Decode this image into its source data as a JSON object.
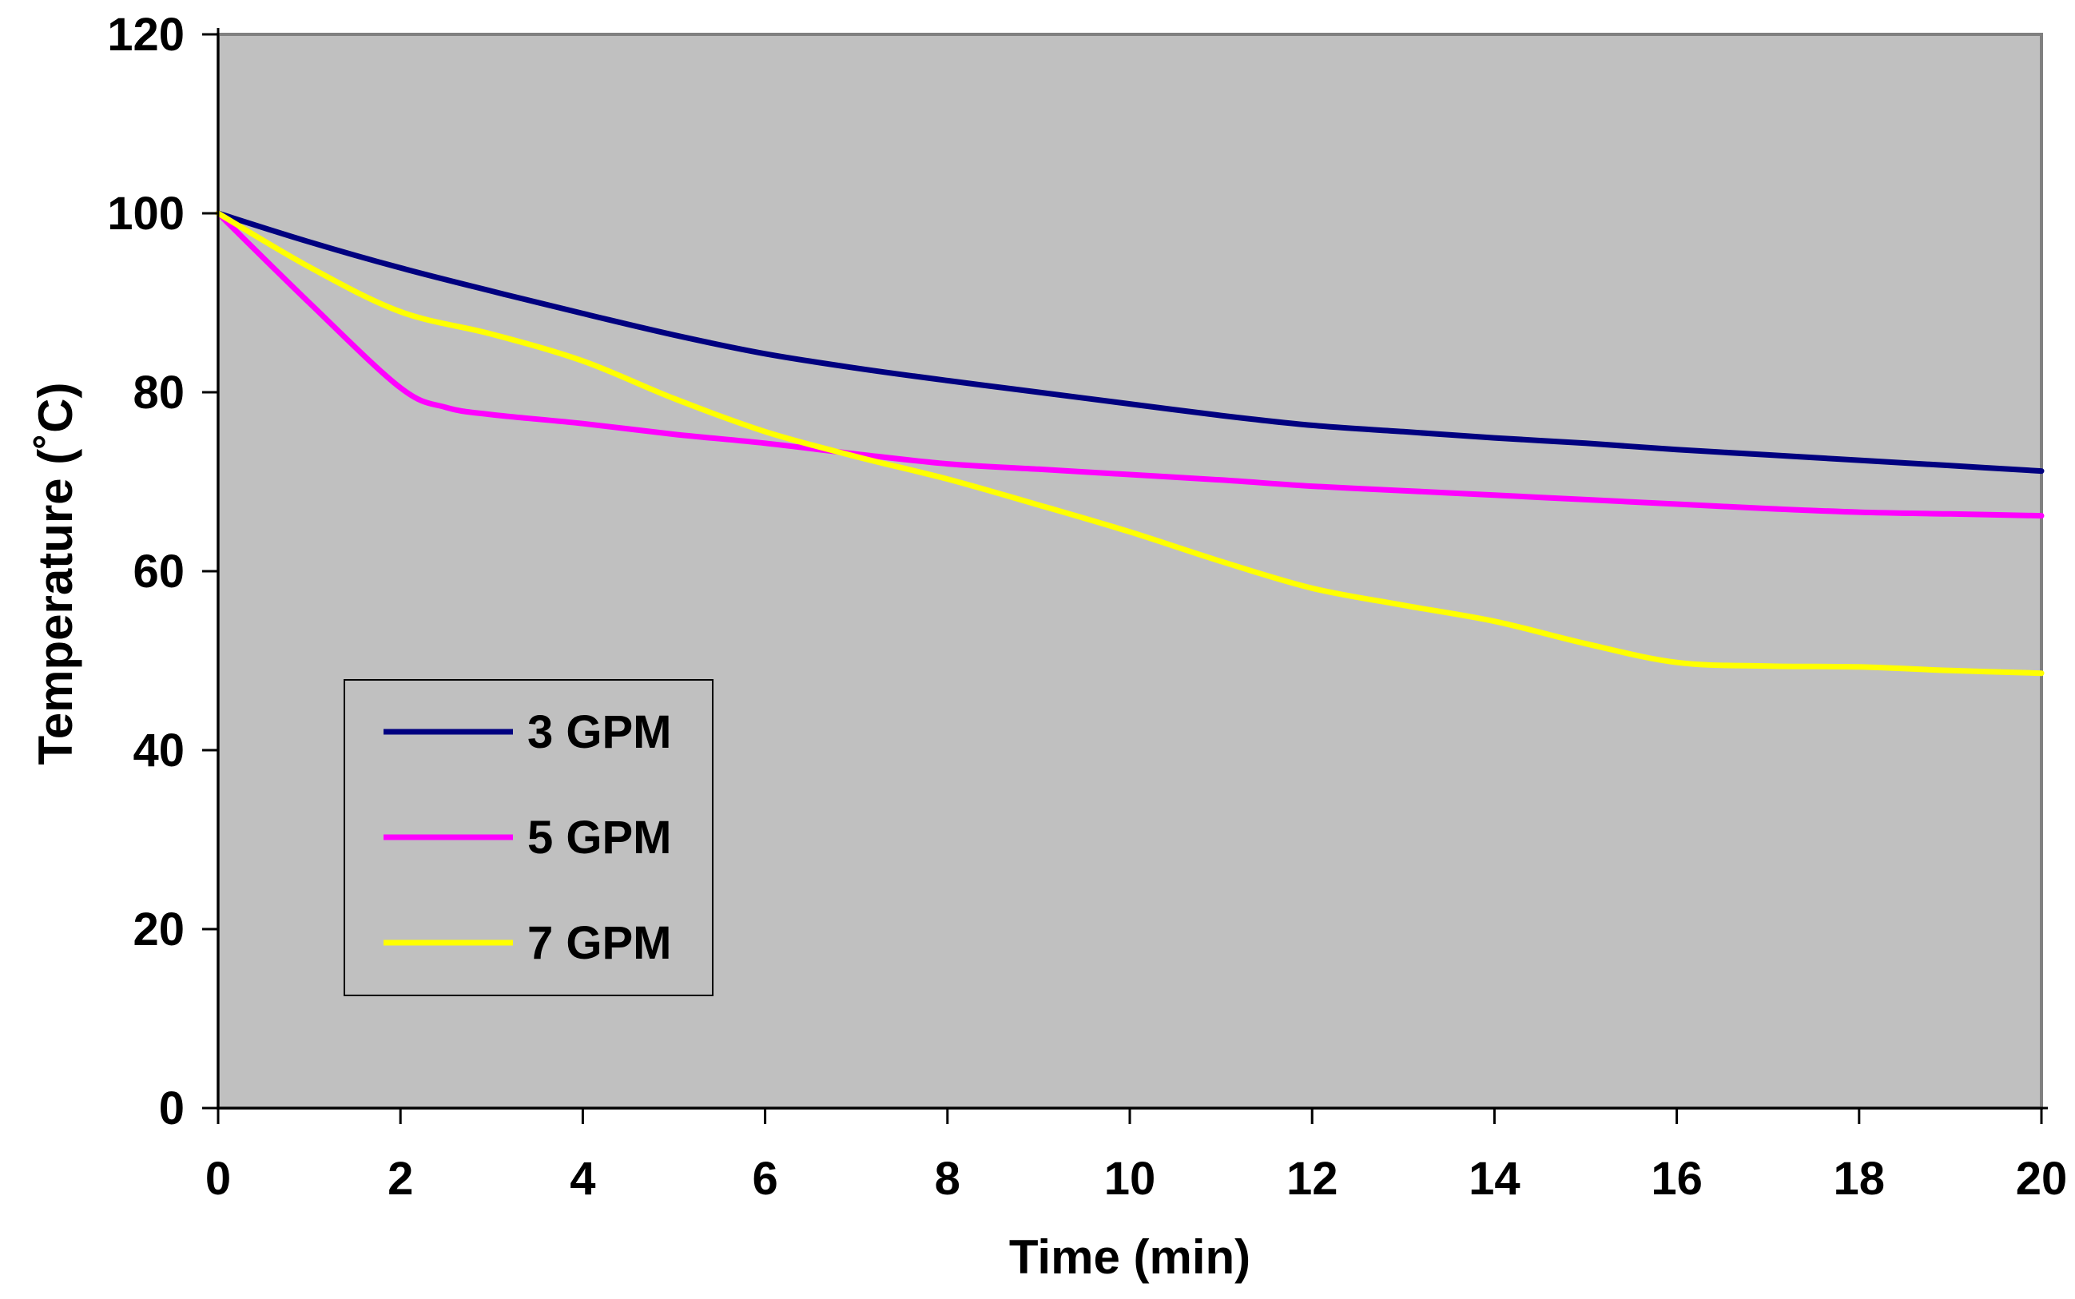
{
  "chart_data": {
    "type": "line",
    "title": "",
    "xlabel": "Time (min)",
    "ylabel": "Temperature (˚C)",
    "xlim": [
      0,
      20
    ],
    "ylim": [
      0,
      120
    ],
    "xticks": [
      "0",
      "2",
      "4",
      "6",
      "8",
      "10",
      "12",
      "14",
      "16",
      "18",
      "20"
    ],
    "yticks": [
      "0",
      "20",
      "40",
      "60",
      "80",
      "100",
      "120"
    ],
    "grid": false,
    "plot_background": "#C0C0C0",
    "legend_position": "lower-left",
    "series": [
      {
        "name": "3 GPM",
        "color": "#000080",
        "x": [
          0,
          1,
          2,
          3,
          4,
          5,
          6,
          7,
          8,
          9,
          10,
          11,
          12,
          13,
          14,
          15,
          16,
          17,
          18,
          19,
          20
        ],
        "y": [
          100,
          96.8,
          93.9,
          91.3,
          88.8,
          86.4,
          84.3,
          82.7,
          81.3,
          80,
          78.7,
          77.4,
          76.3,
          75.6,
          74.9,
          74.3,
          73.6,
          73,
          72.4,
          71.8,
          71.2
        ]
      },
      {
        "name": "5 GPM",
        "color": "#FF00FF",
        "x": [
          0,
          1,
          2,
          2.5,
          3,
          4,
          5,
          6,
          7,
          8,
          9,
          10,
          11,
          12,
          13,
          14,
          15,
          16,
          17,
          18,
          19,
          20
        ],
        "y": [
          100,
          90,
          80.5,
          78.3,
          77.5,
          76.5,
          75.3,
          74.3,
          73.1,
          72,
          71.4,
          70.8,
          70.2,
          69.5,
          69,
          68.5,
          68,
          67.5,
          67,
          66.6,
          66.4,
          66.2
        ]
      },
      {
        "name": "7 GPM",
        "color": "#FFFF00",
        "x": [
          0,
          1,
          2,
          3,
          4,
          5,
          6,
          7,
          8,
          9,
          10,
          11,
          12,
          13,
          14,
          15,
          16,
          17,
          18,
          19,
          20
        ],
        "y": [
          100,
          94,
          89,
          86.5,
          83.5,
          79.3,
          75.6,
          72.8,
          70.3,
          67.4,
          64.4,
          61.1,
          58.1,
          56.2,
          54.4,
          51.9,
          49.8,
          49.4,
          49.3,
          48.9,
          48.6
        ]
      }
    ]
  }
}
